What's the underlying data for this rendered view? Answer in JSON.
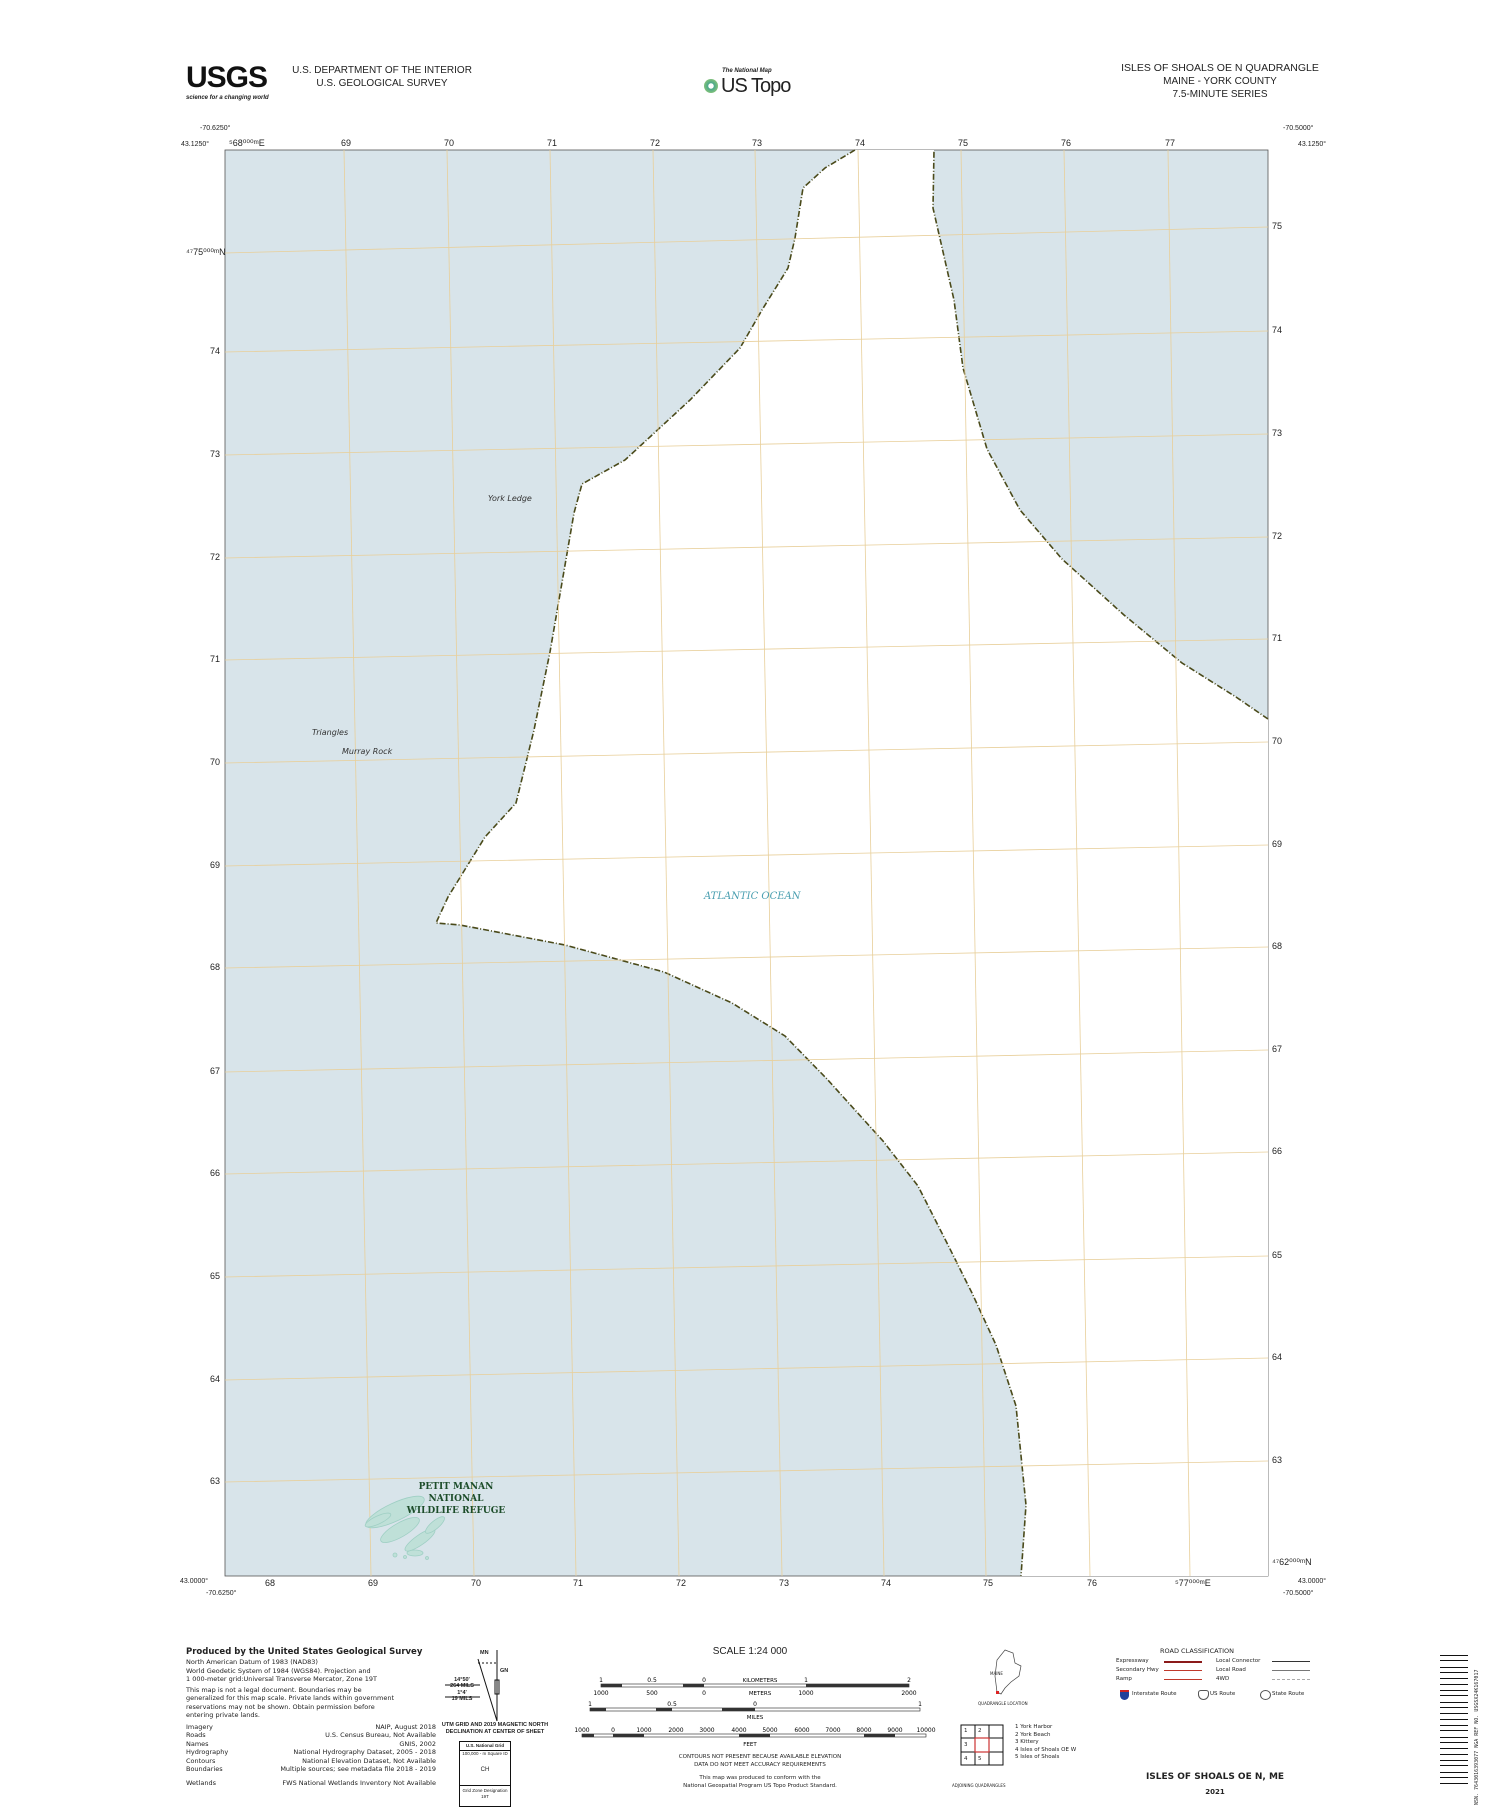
{
  "header": {
    "agency_line1": "U.S. DEPARTMENT OF THE INTERIOR",
    "agency_line2": "U.S. GEOLOGICAL SURVEY",
    "usgs_logo": "USGS",
    "usgs_tagline": "science for a changing world",
    "national_map": "The National Map",
    "us_topo": "US Topo",
    "quad_title": "ISLES OF SHOALS OE N QUADRANGLE",
    "state_county": "MAINE - YORK COUNTY",
    "series": "7.5-MINUTE SERIES"
  },
  "corners": {
    "top_left_lon": "-70.6250°",
    "top_left_lat": "43.1250°",
    "top_right_lon": "-70.5000°",
    "top_right_lat": "43.1250°",
    "bottom_left_lon": "-70.6250°",
    "bottom_left_lat": "43.0000°",
    "bottom_right_lon": "-70.5000°",
    "bottom_right_lat": "43.0000°"
  },
  "grid": {
    "top_eastings": [
      "⁵68⁰⁰⁰ᵐE",
      "69",
      "70",
      "71",
      "72",
      "73",
      "74",
      "75",
      "76",
      "77"
    ],
    "bottom_eastings": [
      "68",
      "69",
      "70",
      "71",
      "72",
      "73",
      "74",
      "75",
      "76",
      "⁵77⁰⁰⁰ᵐE"
    ],
    "left_northings": [
      "⁴⁷75⁰⁰⁰ᵐN",
      "74",
      "73",
      "72",
      "71",
      "70",
      "69",
      "68",
      "67",
      "66",
      "65",
      "64",
      "63"
    ],
    "right_northings": [
      "75",
      "74",
      "73",
      "72",
      "71",
      "70",
      "69",
      "68",
      "67",
      "66",
      "65",
      "64",
      "63",
      "⁴⁷62⁰⁰⁰ᵐN"
    ]
  },
  "map": {
    "water_color": "#d8e4ea",
    "land_color": "#ffffff",
    "grid_color": "#e8cf9a",
    "labels": {
      "york_ledge": "York Ledge",
      "triangles": "Triangles",
      "murray_rock": "Murray Rock",
      "ocean": "ATLANTIC OCEAN",
      "refuge_line1": "PETIT MANAN NATIONAL",
      "refuge_line2": "WILDLIFE REFUGE"
    }
  },
  "footer": {
    "produced_by": "Produced by the United States Geological Survey",
    "datum_lines": [
      "North American Datum of 1983 (NAD83)",
      "World Geodetic System of 1984 (WGS84).  Projection and",
      "1 000-meter grid:Universal Transverse Mercator, Zone 19T"
    ],
    "disclaimer_lines": [
      "This map is not a legal document. Boundaries may be",
      "generalized for this map scale. Private lands within government",
      "reservations may not be shown. Obtain permission before",
      "entering private lands."
    ],
    "credits": [
      {
        "label": "Imagery",
        "value": "NAIP,  August  2018"
      },
      {
        "label": "Roads",
        "value": "U.S.  Census  Bureau,  Not  Available"
      },
      {
        "label": "Names",
        "value": "GNIS,  2002"
      },
      {
        "label": "Hydrography",
        "value": "National Hydrography Dataset, 2005 - 2018"
      },
      {
        "label": "Contours",
        "value": "National Elevation Dataset, Not Available"
      },
      {
        "label": "Boundaries",
        "value": "Multiple sources; see metadata file 2018 - 2019"
      },
      {
        "label": "Wetlands",
        "value": "FWS  National  Wetlands  Inventory  Not  Available"
      }
    ],
    "declination": {
      "mn": "MN",
      "gn": "GN",
      "angle1": "14°50'",
      "mils1": "264 MILS",
      "angle2": "1°4'",
      "mils2": "19 MILS",
      "caption1": "UTM GRID AND 2019 MAGNETIC NORTH",
      "caption2": "DECLINATION AT CENTER OF SHEET"
    },
    "grid_box": {
      "title": "U.S. National Grid",
      "subtitle": "100,000 - m Square ID",
      "square_id": "CH",
      "gzd_label": "Grid Zone Designation",
      "gzd": "19T"
    },
    "scale": {
      "title": "SCALE 1:24 000",
      "km_ticks": [
        "1",
        "0.5",
        "0",
        "1",
        "2"
      ],
      "km_unit": "KILOMETERS",
      "m_ticks": [
        "1000",
        "500",
        "0",
        "1000",
        "2000"
      ],
      "m_unit": "METERS",
      "mi_ticks": [
        "1",
        "0.5",
        "0",
        "1"
      ],
      "mi_unit": "MILES",
      "ft_ticks": [
        "1000",
        "0",
        "1000",
        "2000",
        "3000",
        "4000",
        "5000",
        "6000",
        "7000",
        "8000",
        "9000",
        "10000"
      ],
      "ft_unit": "FEET"
    },
    "contour_note1": "CONTOURS NOT PRESENT BECAUSE AVAILABLE ELEVATION",
    "contour_note2": "DATA DO NOT MEET ACCURACY REQUIREMENTS",
    "standard_note1": "This map was produced to conform with the",
    "standard_note2": "National Geospatial Program US Topo Product Standard.",
    "location": {
      "state": "MAINE",
      "caption": "QUADRANGLE LOCATION"
    },
    "adjoining": {
      "cells": [
        "1",
        "2",
        "3",
        "4",
        "5"
      ],
      "names": [
        "1 York Harbor",
        "2 York Beach",
        "3 Kittery",
        "4 Isles of Shoals OE W",
        "5 Isles of Shoals"
      ],
      "caption": "ADJOINING QUADRANGLES"
    },
    "roads": {
      "title": "ROAD CLASSIFICATION",
      "left": [
        "Expressway",
        "Secondary Hwy",
        "Ramp"
      ],
      "right": [
        "Local Connector",
        "Local Road",
        "4WD"
      ],
      "shields": [
        "Interstate Route",
        "US Route",
        "State Route"
      ]
    },
    "sheet_name": "ISLES OF SHOALS OE N,  ME",
    "year": "2021",
    "barcode_text": "NSN. 7643016393077  NGA REF NO. USGSX24K167017"
  }
}
